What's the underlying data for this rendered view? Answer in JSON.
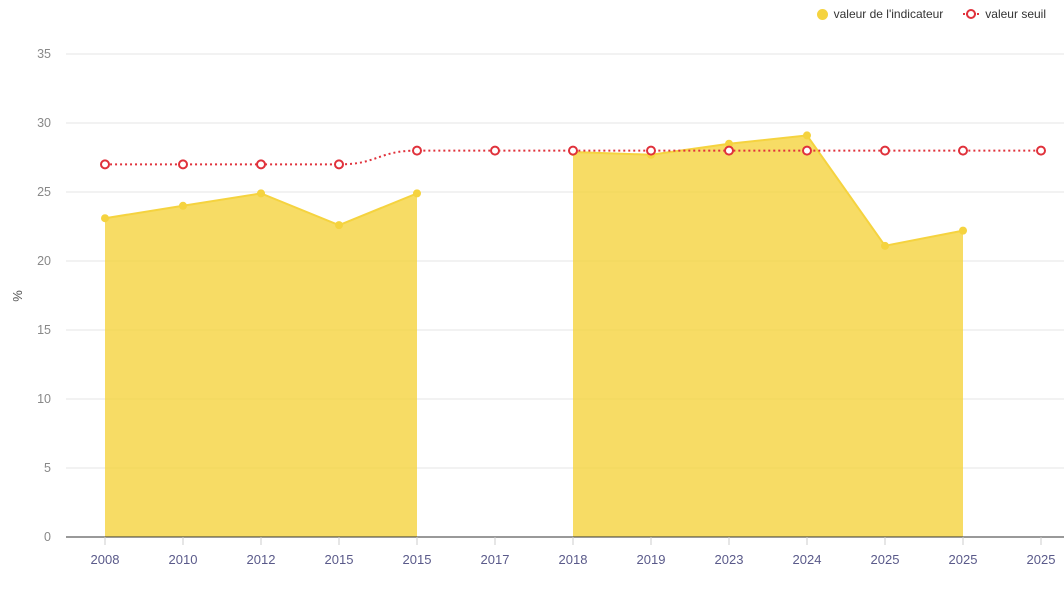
{
  "chart_data": {
    "type": "area",
    "ylabel": "%",
    "ylim": [
      0,
      35
    ],
    "yticks": [
      0,
      5,
      10,
      15,
      20,
      25,
      30,
      35
    ],
    "grid": true,
    "legend_position": "top-right",
    "categories": [
      "2008",
      "2010",
      "2012",
      "2015",
      "2015",
      "2017",
      "2018",
      "2019",
      "2023",
      "2024",
      "2025",
      "2025",
      "2025"
    ],
    "series": [
      {
        "name": "valeur de l'indicateur",
        "type": "area",
        "color": "#f5d33f",
        "values": [
          23.1,
          24.0,
          24.9,
          22.6,
          24.9,
          null,
          27.9,
          27.7,
          28.5,
          29.1,
          21.1,
          22.2,
          null
        ]
      },
      {
        "name": "valeur seuil",
        "type": "line",
        "style": "dotted",
        "color": "#e0313b",
        "values": [
          27,
          27,
          27,
          27,
          28,
          28,
          28,
          28,
          28,
          28,
          28,
          28,
          28
        ]
      }
    ]
  }
}
